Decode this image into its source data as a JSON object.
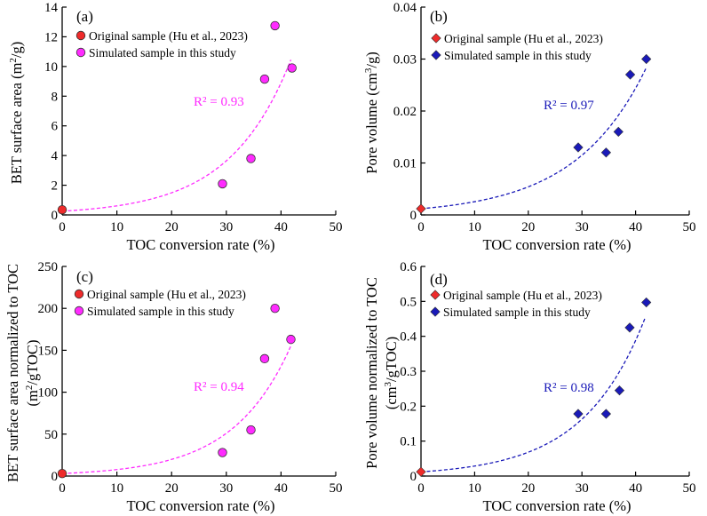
{
  "chart_data": [
    {
      "type": "scatter",
      "panel": "(a)",
      "xlabel": "TOC  conversion rate (%)",
      "ylabel": "BET surface area (m²/g)",
      "ylabel_parts": [
        "BET surface area (m",
        "2",
        "/g)"
      ],
      "xlim": [
        0,
        50
      ],
      "ylim": [
        0,
        14
      ],
      "xticks": [
        "0",
        "10",
        "20",
        "30",
        "40",
        "50"
      ],
      "yticks": [
        "0",
        "2",
        "4",
        "6",
        "8",
        "10",
        "12",
        "14"
      ],
      "marker": "circle",
      "color": "#ff2bff",
      "original": {
        "name": "Original sample (Hu et al., 2023)",
        "color": "#ee2b2b",
        "x": [
          0
        ],
        "y": [
          0.35
        ]
      },
      "simulated": {
        "name": "Simulated sample in this study",
        "color": "#ff2bff",
        "x": [
          29.3,
          34.5,
          37.0,
          38.9,
          42.0
        ],
        "y": [
          2.1,
          3.8,
          9.15,
          12.75,
          9.9
        ]
      },
      "fit": {
        "a": 0.25,
        "b": 0.0893,
        "x_end": 41.8,
        "r2_text": "R² = 0.93"
      }
    },
    {
      "type": "scatter",
      "panel": "(b)",
      "xlabel": "TOC  conversion rate (%)",
      "ylabel": "Pore volume (cm³/g)",
      "ylabel_parts": [
        "Pore volume (cm",
        "3",
        "/g)"
      ],
      "xlim": [
        0,
        50
      ],
      "ylim": [
        0,
        0.04
      ],
      "xticks": [
        "0",
        "10",
        "20",
        "30",
        "40",
        "50"
      ],
      "yticks": [
        "0",
        "0.01",
        "0.02",
        "0.03",
        "0.04"
      ],
      "marker": "diamond",
      "color": "#1a1ab8",
      "original": {
        "name": "Original sample (Hu et al., 2023)",
        "color": "#ee2b2b",
        "x": [
          0
        ],
        "y": [
          0.0012
        ]
      },
      "simulated": {
        "name": "Simulated sample in this study",
        "color": "#1a1ab8",
        "x": [
          29.3,
          34.5,
          36.8,
          39.0,
          42.0
        ],
        "y": [
          0.013,
          0.012,
          0.016,
          0.027,
          0.03
        ]
      },
      "fit": {
        "a": 0.0012,
        "b": 0.0753,
        "x_end": 42.0,
        "r2_text": "R² = 0.97"
      }
    },
    {
      "type": "scatter",
      "panel": "(c)",
      "xlabel": "TOC  conversion rate (%)",
      "ylabel": "BET surface area normalized to TOC",
      "ylabel_parts": [
        "BET surface area normalized to TOC"
      ],
      "ylabel2": "(m²/gTOC)",
      "ylabel2_parts": [
        "(m",
        "2",
        "/gTOC)"
      ],
      "xlim": [
        0,
        50
      ],
      "ylim": [
        0,
        250
      ],
      "xticks": [
        "0",
        "10",
        "20",
        "30",
        "40",
        "50"
      ],
      "yticks": [
        "0",
        "50",
        "100",
        "150",
        "200",
        "250"
      ],
      "marker": "circle",
      "color": "#ff2bff",
      "original": {
        "name": "Original sample (Hu et al., 2023)",
        "color": "#ee2b2b",
        "x": [
          0
        ],
        "y": [
          3
        ]
      },
      "simulated": {
        "name": "Simulated sample in this study",
        "color": "#ff2bff",
        "x": [
          29.3,
          34.5,
          37.0,
          38.9,
          41.8
        ],
        "y": [
          28,
          55,
          140,
          200,
          163
        ]
      },
      "fit": {
        "a": 3.0,
        "b": 0.0944,
        "x_end": 41.8,
        "r2_text": "R² = 0.94"
      }
    },
    {
      "type": "scatter",
      "panel": "(d)",
      "xlabel": "TOC  conversion rate (%)",
      "ylabel": "Pore volume normalized to TOC",
      "ylabel_parts": [
        "Pore volume normalized to TOC"
      ],
      "ylabel2": "(cm³/gTOC)",
      "ylabel2_parts": [
        "(cm",
        "3",
        "/gTOC)"
      ],
      "xlim": [
        0,
        50
      ],
      "ylim": [
        0,
        0.6
      ],
      "xticks": [
        "0",
        "10",
        "20",
        "30",
        "40",
        "50"
      ],
      "yticks": [
        "0",
        "0.1",
        "0.2",
        "0.3",
        "0.4",
        "0.5",
        "0.6"
      ],
      "marker": "diamond",
      "color": "#1a1ab8",
      "original": {
        "name": "Original sample (Hu et al., 2023)",
        "color": "#ee2b2b",
        "x": [
          0
        ],
        "y": [
          0.012
        ]
      },
      "simulated": {
        "name": "Simulated sample in this study",
        "color": "#1a1ab8",
        "x": [
          29.3,
          34.5,
          37.0,
          38.9,
          42.0
        ],
        "y": [
          0.178,
          0.178,
          0.245,
          0.425,
          0.497
        ]
      },
      "fit": {
        "a": 0.012,
        "b": 0.0869,
        "x_end": 41.8,
        "r2_text": "R² = 0.98"
      }
    }
  ]
}
